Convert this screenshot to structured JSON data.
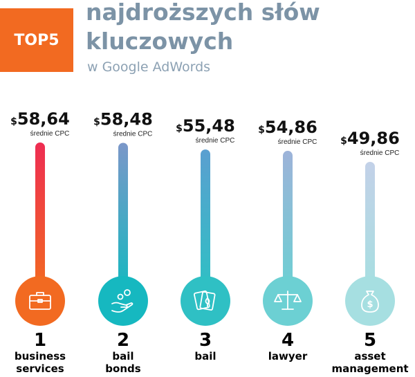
{
  "header": {
    "badge": "TOP5",
    "title_line1": "najdroższych słów",
    "title_line2": "kluczowych",
    "subtitle": "w Google AdWords"
  },
  "chart_data": {
    "type": "bar",
    "currency": "$",
    "value_caption": "średnie CPC",
    "categories": [
      "business services",
      "bail bonds",
      "bail",
      "lawyer",
      "asset management"
    ],
    "ranks": [
      "1",
      "2",
      "3",
      "4",
      "5"
    ],
    "label_lines": [
      [
        "business",
        "services"
      ],
      [
        "bail",
        "bonds"
      ],
      [
        "bail"
      ],
      [
        "lawyer"
      ],
      [
        "asset",
        "management"
      ]
    ],
    "values": [
      58.64,
      58.48,
      55.48,
      54.86,
      49.86
    ],
    "value_labels": [
      "58,64",
      "58,48",
      "55,48",
      "54,86",
      "49,86"
    ],
    "icons": [
      "briefcase-icon",
      "hand-coins-icon",
      "playing-cards-icon",
      "scales-icon",
      "money-bag-icon"
    ],
    "colors": [
      "#ee2d52",
      "#7b97c9",
      "#5a9fd0",
      "#9db3d9",
      "#c3d1e8"
    ],
    "bottom_color": "#f26a21",
    "circle_colors": [
      "#f26a21",
      "#16b8c0",
      "#2fc0c4",
      "#6cd0d3",
      "#a6dfe1"
    ]
  }
}
